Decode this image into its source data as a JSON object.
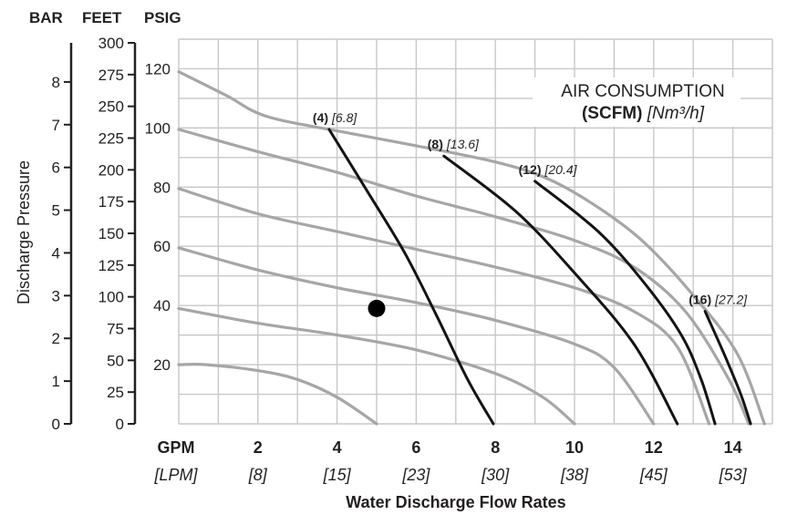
{
  "chart_data": {
    "type": "line",
    "xlabel": "Water Discharge Flow Rates",
    "ylabel": "Discharge Pressure",
    "x_unit_primary": "GPM",
    "x_unit_secondary": "[LPM]",
    "x_ticks": [
      {
        "gpm": "2",
        "lpm": "[8]"
      },
      {
        "gpm": "4",
        "lpm": "[15]"
      },
      {
        "gpm": "6",
        "lpm": "[23]"
      },
      {
        "gpm": "8",
        "lpm": "[30]"
      },
      {
        "gpm": "10",
        "lpm": "[38]"
      },
      {
        "gpm": "12",
        "lpm": "[45]"
      },
      {
        "gpm": "14",
        "lpm": "[53]"
      }
    ],
    "xlim": [
      0,
      15
    ],
    "ylim": [
      0,
      130
    ],
    "y_axes": {
      "bar": {
        "label": "BAR",
        "ticks": [
          "0",
          "1",
          "2",
          "3",
          "4",
          "5",
          "6",
          "7",
          "8"
        ],
        "max": 9
      },
      "feet": {
        "label": "FEET",
        "ticks": [
          "0",
          "25",
          "50",
          "75",
          "100",
          "125",
          "150",
          "175",
          "200",
          "225",
          "250",
          "275",
          "300"
        ],
        "max": 300
      },
      "psig": {
        "label": "PSIG",
        "ticks": [
          "20",
          "40",
          "60",
          "80",
          "100",
          "120"
        ],
        "max": 130
      }
    },
    "legend": {
      "line1": "AIR CONSUMPTION",
      "line2_bold": "(SCFM)",
      "line2_italic": "[Nm³/h]"
    },
    "pressure_curves": [
      {
        "points": [
          [
            0,
            20
          ],
          [
            0.7,
            20
          ],
          [
            2,
            18
          ],
          [
            3,
            15
          ],
          [
            4,
            9
          ],
          [
            5,
            0
          ]
        ]
      },
      {
        "points": [
          [
            0,
            39
          ],
          [
            2,
            34
          ],
          [
            4,
            30
          ],
          [
            6,
            25
          ],
          [
            8,
            17
          ],
          [
            9.2,
            9
          ],
          [
            10,
            0
          ]
        ]
      },
      {
        "points": [
          [
            0,
            59.5
          ],
          [
            2,
            52
          ],
          [
            4,
            46
          ],
          [
            6,
            41
          ],
          [
            8,
            35
          ],
          [
            10,
            27
          ],
          [
            11,
            19
          ],
          [
            12,
            0
          ]
        ]
      },
      {
        "points": [
          [
            0,
            79.5
          ],
          [
            2,
            71
          ],
          [
            4,
            65
          ],
          [
            6,
            59
          ],
          [
            8,
            53
          ],
          [
            10,
            46
          ],
          [
            11.5,
            38
          ],
          [
            12.6,
            26
          ],
          [
            13.4,
            0
          ]
        ]
      },
      {
        "points": [
          [
            0,
            99.5
          ],
          [
            2,
            92
          ],
          [
            4,
            85
          ],
          [
            6,
            77
          ],
          [
            8,
            70
          ],
          [
            10,
            62
          ],
          [
            11.5,
            53
          ],
          [
            12.8,
            38
          ],
          [
            13.9,
            15
          ],
          [
            14.4,
            0
          ]
        ]
      },
      {
        "points": [
          [
            0,
            119
          ],
          [
            1.2,
            111
          ],
          [
            2.2,
            104
          ],
          [
            4,
            99
          ],
          [
            6,
            94
          ],
          [
            8,
            88.5
          ],
          [
            9.3,
            83
          ],
          [
            10.5,
            74
          ],
          [
            11.7,
            62
          ],
          [
            12.9,
            45
          ],
          [
            14.1,
            24
          ],
          [
            14.8,
            0
          ]
        ]
      }
    ],
    "air_curves": [
      {
        "label_bold": "(4)",
        "label_italic": "[6.8]",
        "points": [
          [
            3.8,
            99.5
          ],
          [
            4.7,
            80
          ],
          [
            5.7,
            58
          ],
          [
            6.5,
            37
          ],
          [
            7.3,
            15
          ],
          [
            7.95,
            0
          ]
        ]
      },
      {
        "label_bold": "(8)",
        "label_italic": "[13.6]",
        "points": [
          [
            6.7,
            90.5
          ],
          [
            8.5,
            72
          ],
          [
            10,
            51
          ],
          [
            11.5,
            27
          ],
          [
            12.6,
            0
          ]
        ]
      },
      {
        "label_bold": "(12)",
        "label_italic": "[20.4]",
        "points": [
          [
            9.0,
            82
          ],
          [
            10.6,
            65
          ],
          [
            11.8,
            47
          ],
          [
            12.7,
            30
          ],
          [
            13.2,
            15
          ],
          [
            13.55,
            0
          ]
        ]
      },
      {
        "label_bold": "(16)",
        "label_italic": "[27.2]",
        "points": [
          [
            13.3,
            38
          ],
          [
            13.8,
            23
          ],
          [
            14.2,
            10
          ],
          [
            14.45,
            0
          ]
        ]
      }
    ],
    "operating_point": {
      "gpm": 5,
      "psig": 39
    }
  }
}
